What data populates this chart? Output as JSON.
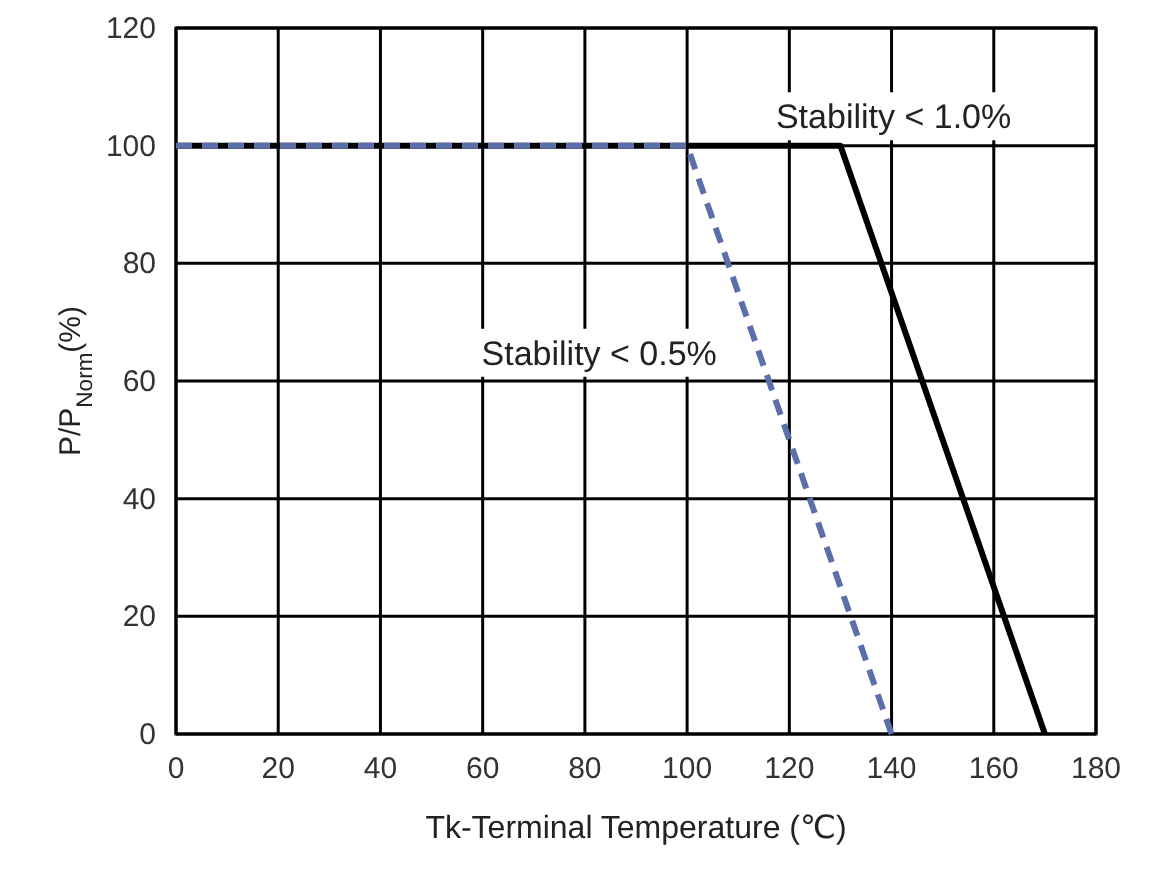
{
  "chart_data": {
    "type": "line",
    "xlabel": "Tk-Terminal Temperature (℃)",
    "ylabel": "P/P$_{Norm}$(%)",
    "xlim": [
      0,
      180
    ],
    "xticks": [
      0,
      20,
      40,
      60,
      80,
      100,
      120,
      140,
      160,
      180
    ],
    "ylim": [
      0,
      120
    ],
    "yticks": [
      0,
      20,
      40,
      60,
      80,
      100,
      120
    ],
    "grid": true,
    "marker": "none",
    "series": [
      {
        "color": "#000000",
        "line_style": "solid",
        "x": [
          0,
          130,
          170
        ],
        "values": [
          100,
          100,
          0
        ]
      },
      {
        "color": "#5b6fa8",
        "line_style": "dashed",
        "x": [
          0,
          100,
          140
        ],
        "values": [
          100,
          100,
          0
        ]
      }
    ],
    "annotations": [
      "Stability < 1.0%",
      "Stability < 0.5%"
    ]
  }
}
